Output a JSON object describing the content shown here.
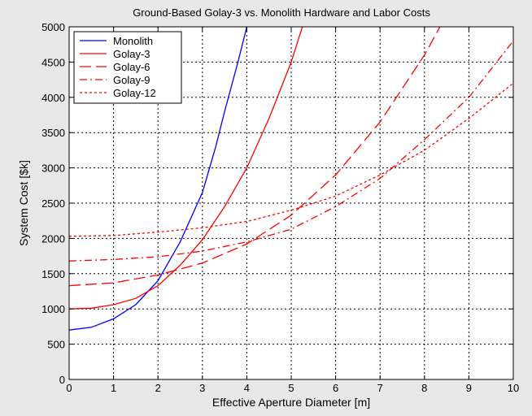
{
  "chart_data": {
    "type": "line",
    "title": "Ground-Based Golay-3 vs. Monolith Hardware and Labor Costs",
    "xlabel": "Effective Aperture Diameter [m]",
    "ylabel": "System Cost [$k]",
    "xlim": [
      0,
      10
    ],
    "ylim": [
      0,
      5000
    ],
    "xticks": [
      0,
      1,
      2,
      3,
      4,
      5,
      6,
      7,
      8,
      9,
      10
    ],
    "yticks": [
      0,
      500,
      1000,
      1500,
      2000,
      2500,
      3000,
      3500,
      4000,
      4500,
      5000
    ],
    "xtick_labels": [
      "0",
      "1",
      "2",
      "3",
      "4",
      "5",
      "6",
      "7",
      "8",
      "9",
      "10"
    ],
    "ytick_labels": [
      "0",
      "500",
      "1000",
      "1500",
      "2000",
      "2500",
      "3000",
      "3500",
      "4000",
      "4500",
      "5000"
    ],
    "grid": true,
    "legend_position": "top-left",
    "series": [
      {
        "name": "Monolith",
        "color": "#0000ff",
        "dash": "solid",
        "x": [
          0,
          0.5,
          1,
          1.5,
          2,
          2.5,
          3,
          3.3,
          3.5,
          3.8,
          4.0
        ],
        "y": [
          700,
          740,
          860,
          1060,
          1400,
          1950,
          2650,
          3300,
          3800,
          4500,
          5000
        ]
      },
      {
        "name": "Golay-3",
        "color": "#ff0000",
        "dash": "solid",
        "x": [
          0,
          0.5,
          1,
          1.5,
          2,
          2.5,
          3,
          3.5,
          4,
          4.5,
          5,
          5.25
        ],
        "y": [
          1000,
          1010,
          1060,
          1150,
          1330,
          1620,
          1980,
          2450,
          3000,
          3700,
          4500,
          5000
        ]
      },
      {
        "name": "Golay-6",
        "color": "#ff0000",
        "dash": "longdash",
        "x": [
          0,
          1,
          2,
          3,
          4,
          5,
          6,
          7,
          8,
          8.35
        ],
        "y": [
          1330,
          1370,
          1480,
          1650,
          1920,
          2330,
          2900,
          3650,
          4600,
          5000
        ]
      },
      {
        "name": "Golay-9",
        "color": "#ff0000",
        "dash": "dashdot",
        "x": [
          0,
          1,
          2,
          3,
          4,
          5,
          6,
          7,
          8,
          9,
          10
        ],
        "y": [
          1680,
          1700,
          1740,
          1820,
          1950,
          2130,
          2450,
          2850,
          3400,
          4000,
          4800
        ]
      },
      {
        "name": "Golay-12",
        "color": "#ff0000",
        "dash": "dotted",
        "x": [
          0,
          1,
          2,
          3,
          4,
          5,
          6,
          7,
          8,
          9,
          10
        ],
        "y": [
          2030,
          2040,
          2090,
          2150,
          2240,
          2400,
          2600,
          2900,
          3250,
          3700,
          4200
        ]
      }
    ]
  }
}
